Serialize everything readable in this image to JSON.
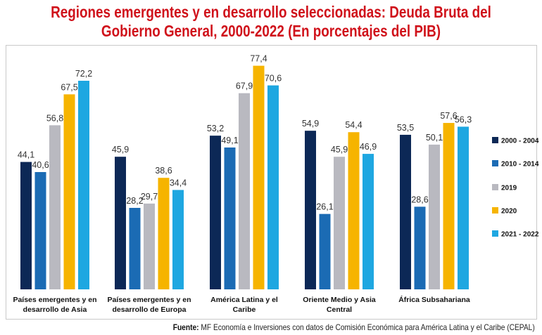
{
  "title": "Regiones emergentes y en desarrollo seleccionadas: Deuda Bruta del Gobierno General, 2000-2022 (En porcentajes del PIB)",
  "footer": {
    "label": "Fuente:",
    "text": "MF Economía e Inversiones con datos de Comisión Económica para América Latina y el Caribe (CEPAL)"
  },
  "chart_data": {
    "type": "bar",
    "title": "Regiones emergentes y en desarrollo seleccionadas: Deuda Bruta del Gobierno General, 2000-2022 (En porcentajes del PIB)",
    "categories": [
      [
        "Países emergentes y en",
        "desarrollo de Asia"
      ],
      [
        "Países emergentes y en",
        "desarrollo de Europa"
      ],
      [
        "América Latina y el",
        "Caribe"
      ],
      [
        "Oriente Medio y Asia",
        "Central"
      ],
      [
        "África Subsahariana",
        ""
      ]
    ],
    "series": [
      {
        "name": "2000 - 2004",
        "color": "#0c2856",
        "values": [
          44.1,
          45.9,
          53.2,
          54.9,
          53.5
        ],
        "labels": [
          "44,1",
          "45,9",
          "53,2",
          "54,9",
          "53,5"
        ]
      },
      {
        "name": "2010 - 2014",
        "color": "#1b6bb4",
        "values": [
          40.6,
          28.2,
          49.1,
          26.1,
          28.6
        ],
        "labels": [
          "40,6",
          "28,2",
          "49,1",
          "26,1",
          "28,6"
        ]
      },
      {
        "name": "2019",
        "color": "#b9b9c0",
        "values": [
          56.8,
          29.7,
          67.9,
          45.9,
          50.1
        ],
        "labels": [
          "56,8",
          "29,7",
          "67,9",
          "45,9",
          "50,1"
        ]
      },
      {
        "name": "2020",
        "color": "#f6b400",
        "values": [
          67.5,
          38.6,
          77.4,
          54.4,
          57.6
        ],
        "labels": [
          "67,5",
          "38,6",
          "77,4",
          "54,4",
          "57,6"
        ]
      },
      {
        "name": "2021 - 2022",
        "color": "#1ea7e1",
        "values": [
          72.2,
          34.4,
          70.6,
          46.9,
          56.3
        ],
        "labels": [
          "72,2",
          "34,4",
          "70,6",
          "46,9",
          "56,3"
        ]
      }
    ],
    "ylim": [
      0,
      80
    ],
    "grid": false,
    "legend": "right"
  }
}
